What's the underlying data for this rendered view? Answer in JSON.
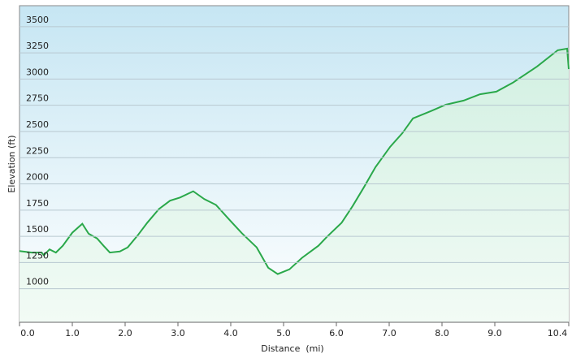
{
  "chart_data": {
    "type": "area",
    "x_label": "Distance  (mi)",
    "y_label": "Elevation (ft)",
    "xlim": [
      0,
      10.4
    ],
    "xticks": [
      {
        "value": 0,
        "label": "0.0"
      },
      {
        "value": 1,
        "label": "1.0"
      },
      {
        "value": 2,
        "label": "2.0"
      },
      {
        "value": 3,
        "label": "3.0"
      },
      {
        "value": 4,
        "label": "4.0"
      },
      {
        "value": 5,
        "label": "5.0"
      },
      {
        "value": 6,
        "label": "6.0"
      },
      {
        "value": 7,
        "label": "7.0"
      },
      {
        "value": 8,
        "label": "8.0"
      },
      {
        "value": 9,
        "label": "9.0"
      },
      10.4
    ],
    "ylim": [
      680,
      3700
    ],
    "yticks": [
      1000,
      1250,
      1500,
      1750,
      2000,
      2250,
      2500,
      2750,
      3000,
      3250,
      3500
    ],
    "grid": true,
    "series": [
      {
        "color": "#2aa84a",
        "x": [
          0,
          0.23,
          0.42,
          0.46,
          0.57,
          0.69,
          0.82,
          1.0,
          1.19,
          1.31,
          1.47,
          1.59,
          1.71,
          1.9,
          2.05,
          2.24,
          2.42,
          2.64,
          2.85,
          3.04,
          3.29,
          3.5,
          3.72,
          3.97,
          4.21,
          4.49,
          4.71,
          4.89,
          5.11,
          5.35,
          5.66,
          5.82,
          6.1,
          6.31,
          6.53,
          6.74,
          7.02,
          7.25,
          7.45,
          7.79,
          8.07,
          8.41,
          8.72,
          9.03,
          9.34,
          9.8,
          10.19,
          10.37,
          10.4
        ],
        "values": [
          1360,
          1345,
          1345,
          1320,
          1375,
          1345,
          1410,
          1535,
          1620,
          1525,
          1480,
          1410,
          1345,
          1355,
          1395,
          1510,
          1630,
          1760,
          1840,
          1870,
          1930,
          1855,
          1800,
          1660,
          1530,
          1395,
          1200,
          1140,
          1185,
          1295,
          1410,
          1495,
          1630,
          1790,
          1975,
          2160,
          2355,
          2485,
          2625,
          2695,
          2755,
          2795,
          2855,
          2880,
          2965,
          3120,
          3275,
          3290,
          3095
        ]
      }
    ]
  }
}
